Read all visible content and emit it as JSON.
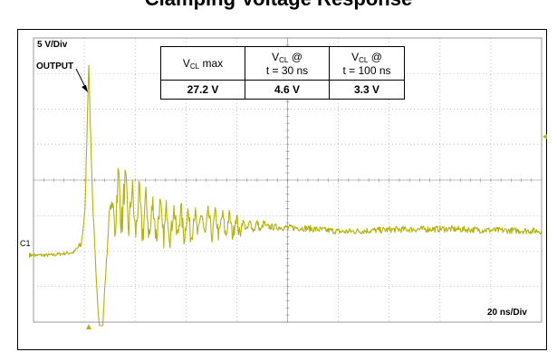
{
  "page_header": "Clamping Voltage Response",
  "scope": {
    "volts_per_div": "5 V/Div",
    "time_per_div": "20 ns/Div",
    "channel_label": "C1",
    "output_label": "OUTPUT",
    "trace_color": "#b3b30b"
  },
  "table": {
    "h1_main": "V",
    "h1_sub": "CL",
    "h1_tail": " max",
    "h2_main": "V",
    "h2_sub": "CL",
    "h2_tail": " @",
    "h2_line2": "t = 30 ns",
    "h3_main": "V",
    "h3_sub": "CL",
    "h3_tail": " @",
    "h3_line2": "t = 100 ns",
    "v1": "27.2 V",
    "v2": "4.6 V",
    "v3": "3.3 V"
  },
  "chart_data": {
    "type": "line",
    "xlabel": "",
    "ylabel": "",
    "x_per_div_ns": 20,
    "y_per_div_V": 5,
    "divisions": {
      "x": 10,
      "y": 8
    },
    "series": [
      {
        "values_description_free": true,
        "x": [
          -30,
          -15,
          -6,
          -3,
          -1.5,
          -0.5,
          0,
          0.5,
          1.5,
          3,
          5,
          8,
          12,
          18,
          25,
          30,
          40,
          55,
          70,
          85,
          100,
          120,
          140,
          160,
          180,
          200,
          220,
          240,
          260,
          280,
          300,
          320,
          340,
          360
        ],
        "y": [
          0,
          0,
          0.4,
          1.5,
          6,
          20,
          27.2,
          20,
          8,
          -4,
          -14,
          6,
          8,
          6,
          5,
          4.6,
          4.4,
          4.2,
          4.0,
          3.8,
          3.3,
          3.6,
          3.7,
          3.5,
          3.4,
          3.2,
          3.3,
          3.1,
          3.2,
          3.0,
          3.1,
          3.2,
          3.1,
          3.0
        ]
      }
    ]
  }
}
